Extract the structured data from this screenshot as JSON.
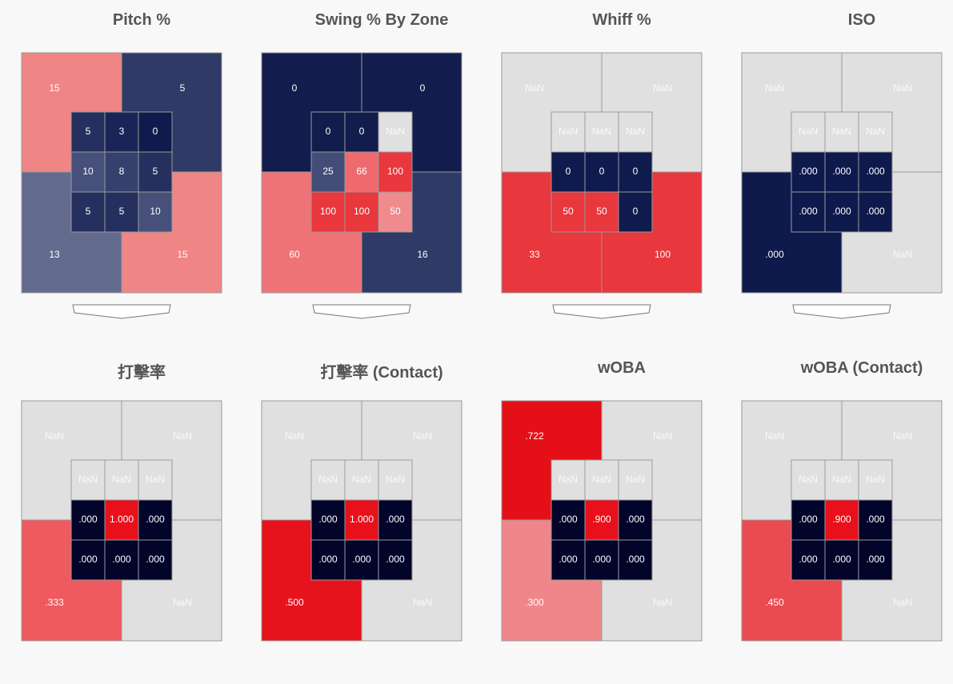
{
  "colors": {
    "background": "#f8f8f8",
    "nan": "#e0e0e0",
    "low": "#0f1d4f",
    "lowest": "#03042a",
    "high": "#e8101a",
    "border": "#9a9a9a",
    "text": "#ffffff"
  },
  "chart_data": [
    {
      "type": "heatmap",
      "title": "Pitch %",
      "outer": {
        "top_left": "15",
        "top_right": "5",
        "bottom_left": "13",
        "bottom_right": "15"
      },
      "inner": [
        [
          "5",
          "3",
          "0"
        ],
        [
          "10",
          "8",
          "5"
        ],
        [
          "5",
          "5",
          "10"
        ]
      ],
      "outer_colors": {
        "top_left": "#f08585",
        "top_right": "#2f3a66",
        "bottom_left": "#626a8e",
        "bottom_right": "#f08585"
      },
      "inner_colors": [
        [
          "#26305f",
          "#1a2456",
          "#0f1b4d"
        ],
        [
          "#46507a",
          "#36406c",
          "#26305f"
        ],
        [
          "#26305f",
          "#26305f",
          "#46507a"
        ]
      ],
      "home_plate": true
    },
    {
      "type": "heatmap",
      "title": "Swing % By Zone",
      "outer": {
        "top_left": "0",
        "top_right": "0",
        "bottom_left": "60",
        "bottom_right": "16"
      },
      "inner": [
        [
          "0",
          "0",
          "NaN"
        ],
        [
          "25",
          "66",
          "100"
        ],
        [
          "100",
          "100",
          "50"
        ]
      ],
      "outer_colors": {
        "top_left": "#121c4d",
        "top_right": "#121c4d",
        "bottom_left": "#ef7377",
        "bottom_right": "#2f3a66"
      },
      "inner_colors": [
        [
          "#121c4d",
          "#121c4d",
          "#e0e0e0"
        ],
        [
          "#434d77",
          "#ef6a6e",
          "#e8373d"
        ],
        [
          "#e8373d",
          "#e8373d",
          "#ef8b8d"
        ]
      ],
      "home_plate": true
    },
    {
      "type": "heatmap",
      "title": "Whiff %",
      "outer": {
        "top_left": "NaN",
        "top_right": "NaN",
        "bottom_left": "33",
        "bottom_right": "100"
      },
      "inner": [
        [
          "NaN",
          "NaN",
          "NaN"
        ],
        [
          "0",
          "0",
          "0"
        ],
        [
          "50",
          "50",
          "0"
        ]
      ],
      "outer_colors": {
        "top_left": "#e0e0e0",
        "top_right": "#e0e0e0",
        "bottom_left": "#e8373d",
        "bottom_right": "#e8373d"
      },
      "inner_colors": [
        [
          "#e0e0e0",
          "#e0e0e0",
          "#e0e0e0"
        ],
        [
          "#0f1b4d",
          "#0f1b4d",
          "#0f1b4d"
        ],
        [
          "#e8373d",
          "#e8373d",
          "#0f1b4d"
        ]
      ],
      "home_plate": true
    },
    {
      "type": "heatmap",
      "title": "ISO",
      "outer": {
        "top_left": "NaN",
        "top_right": "NaN",
        "bottom_left": ".000",
        "bottom_right": "NaN"
      },
      "inner": [
        [
          "NaN",
          "NaN",
          "NaN"
        ],
        [
          ".000",
          ".000",
          ".000"
        ],
        [
          ".000",
          ".000",
          ".000"
        ]
      ],
      "outer_colors": {
        "top_left": "#e0e0e0",
        "top_right": "#e0e0e0",
        "bottom_left": "#0e1a4c",
        "bottom_right": "#e0e0e0"
      },
      "inner_colors": [
        [
          "#e0e0e0",
          "#e0e0e0",
          "#e0e0e0"
        ],
        [
          "#0e1a4c",
          "#0e1a4c",
          "#0e1a4c"
        ],
        [
          "#0e1a4c",
          "#0e1a4c",
          "#0e1a4c"
        ]
      ],
      "home_plate": true
    },
    {
      "type": "heatmap",
      "title": "打擊率",
      "outer": {
        "top_left": "NaN",
        "top_right": "NaN",
        "bottom_left": ".333",
        "bottom_right": "NaN"
      },
      "inner": [
        [
          "NaN",
          "NaN",
          "NaN"
        ],
        [
          ".000",
          "1.000",
          ".000"
        ],
        [
          ".000",
          ".000",
          ".000"
        ]
      ],
      "outer_colors": {
        "top_left": "#e0e0e0",
        "top_right": "#e0e0e0",
        "bottom_left": "#ee5a5f",
        "bottom_right": "#e0e0e0"
      },
      "inner_colors": [
        [
          "#e0e0e0",
          "#e0e0e0",
          "#e0e0e0"
        ],
        [
          "#03042a",
          "#e8101a",
          "#03042a"
        ],
        [
          "#03042a",
          "#03042a",
          "#03042a"
        ]
      ],
      "home_plate": false
    },
    {
      "type": "heatmap",
      "title": "打擊率 (Contact)",
      "outer": {
        "top_left": "NaN",
        "top_right": "NaN",
        "bottom_left": ".500",
        "bottom_right": "NaN"
      },
      "inner": [
        [
          "NaN",
          "NaN",
          "NaN"
        ],
        [
          ".000",
          "1.000",
          ".000"
        ],
        [
          ".000",
          ".000",
          ".000"
        ]
      ],
      "outer_colors": {
        "top_left": "#e0e0e0",
        "top_right": "#e0e0e0",
        "bottom_left": "#e6121c",
        "bottom_right": "#e0e0e0"
      },
      "inner_colors": [
        [
          "#e0e0e0",
          "#e0e0e0",
          "#e0e0e0"
        ],
        [
          "#03042a",
          "#e8101a",
          "#03042a"
        ],
        [
          "#03042a",
          "#03042a",
          "#03042a"
        ]
      ],
      "home_plate": false
    },
    {
      "type": "heatmap",
      "title": "wOBA",
      "outer": {
        "top_left": ".722",
        "top_right": "NaN",
        "bottom_left": ".300",
        "bottom_right": "NaN"
      },
      "inner": [
        [
          "NaN",
          "NaN",
          "NaN"
        ],
        [
          ".000",
          ".900",
          ".000"
        ],
        [
          ".000",
          ".000",
          ".000"
        ]
      ],
      "outer_colors": {
        "top_left": "#e50f18",
        "top_right": "#e0e0e0",
        "bottom_left": "#ef8689",
        "bottom_right": "#e0e0e0"
      },
      "inner_colors": [
        [
          "#e0e0e0",
          "#e0e0e0",
          "#e0e0e0"
        ],
        [
          "#03042a",
          "#e8101a",
          "#03042a"
        ],
        [
          "#03042a",
          "#03042a",
          "#03042a"
        ]
      ],
      "home_plate": false
    },
    {
      "type": "heatmap",
      "title": "wOBA (Contact)",
      "outer": {
        "top_left": "NaN",
        "top_right": "NaN",
        "bottom_left": ".450",
        "bottom_right": "NaN"
      },
      "inner": [
        [
          "NaN",
          "NaN",
          "NaN"
        ],
        [
          ".000",
          ".900",
          ".000"
        ],
        [
          ".000",
          ".000",
          ".000"
        ]
      ],
      "outer_colors": {
        "top_left": "#e0e0e0",
        "top_right": "#e0e0e0",
        "bottom_left": "#e94b50",
        "bottom_right": "#e0e0e0"
      },
      "inner_colors": [
        [
          "#e0e0e0",
          "#e0e0e0",
          "#e0e0e0"
        ],
        [
          "#03042a",
          "#e8101a",
          "#03042a"
        ],
        [
          "#03042a",
          "#03042a",
          "#03042a"
        ]
      ],
      "home_plate": false
    }
  ]
}
